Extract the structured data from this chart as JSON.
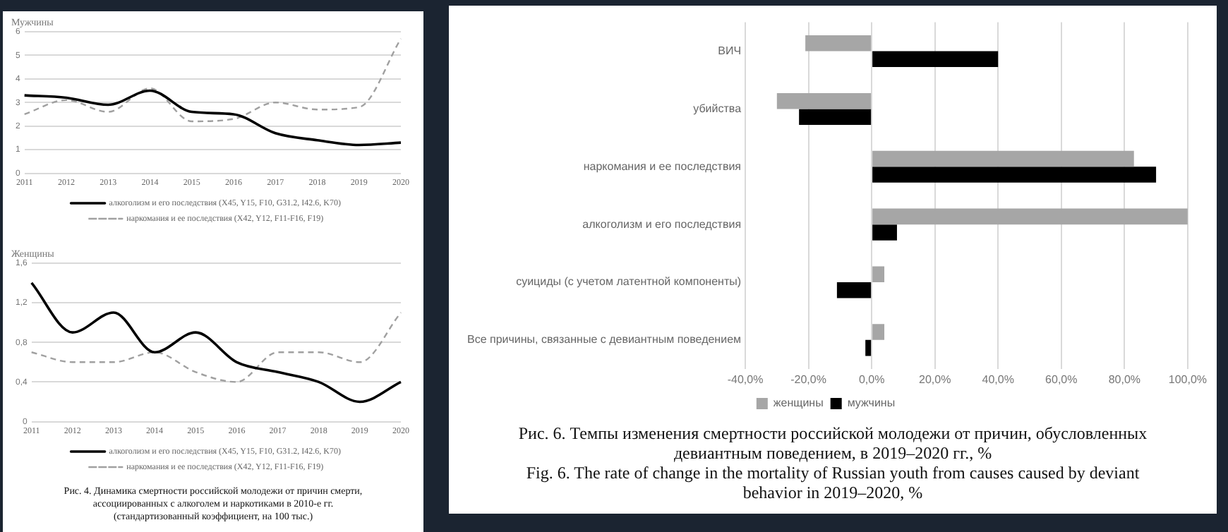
{
  "chart_data": [
    {
      "type": "line",
      "title": "Мужчины",
      "categories": [
        "2011",
        "2012",
        "2013",
        "2014",
        "2015",
        "2016",
        "2017",
        "2018",
        "2019",
        "2020"
      ],
      "series": [
        {
          "name": "алкоголизм и его последствия (X45, Y15, F10, G31.2, I42.6, K70)",
          "color": "#000000",
          "line_style": "solid",
          "values": [
            3.3,
            3.2,
            2.9,
            3.5,
            2.6,
            2.5,
            1.7,
            1.4,
            1.2,
            1.3
          ]
        },
        {
          "name": "наркомания и ее последствия (X42, Y12, F11-F16, F19)",
          "color": "#a0a0a0",
          "line_style": "dashed",
          "values": [
            2.5,
            3.1,
            2.6,
            3.6,
            2.2,
            2.3,
            3.0,
            2.7,
            2.8,
            5.7
          ]
        }
      ],
      "ylim": [
        0,
        6
      ],
      "yticks": [
        0,
        1,
        2,
        3,
        4,
        5,
        6
      ],
      "grid": "y",
      "legend": "bottom",
      "marker": "none"
    },
    {
      "type": "line",
      "title": "Женщины",
      "categories": [
        "2011",
        "2012",
        "2013",
        "2014",
        "2015",
        "2016",
        "2017",
        "2018",
        "2019",
        "2020"
      ],
      "series": [
        {
          "name": "алкоголизм и его последствия (X45, Y15, F10, G31.2, I42.6, K70)",
          "color": "#000000",
          "line_style": "solid",
          "values": [
            1.4,
            0.9,
            1.1,
            0.7,
            0.9,
            0.6,
            0.5,
            0.4,
            0.2,
            0.4
          ]
        },
        {
          "name": "наркомания и ее последствия (X42, Y12, F11-F16, F19)",
          "color": "#a0a0a0",
          "line_style": "dashed",
          "values": [
            0.7,
            0.6,
            0.6,
            0.7,
            0.5,
            0.4,
            0.7,
            0.7,
            0.6,
            1.1
          ]
        }
      ],
      "ylim": [
        0,
        1.6
      ],
      "yticks": [
        0,
        {
          "value": 0.4,
          "label": "0,4"
        },
        {
          "value": 0.8,
          "label": "0,8"
        },
        {
          "value": 1.2,
          "label": "1,2"
        },
        {
          "value": 1.6,
          "label": "1,6"
        }
      ],
      "grid": "y",
      "legend": "bottom",
      "marker": "none",
      "annotations": [
        "Рис. 4. Динамика смертности российской молодежи от причин смерти, ассоциированных с алкоголем и наркотиками в 2010-е гг. (стандартизованный коэффициент, на 100 тыс.)"
      ]
    },
    {
      "type": "bar",
      "orientation": "horizontal",
      "categories": [
        "ВИЧ",
        "убийства",
        "наркомания и ее последствия",
        "алкоголизм и его последствия",
        "суициды (с учетом латентной компоненты)",
        "Все причины, связанные с девиантным поведением"
      ],
      "series": [
        {
          "name": "женщины",
          "color": "#a6a6a6",
          "values": [
            -21,
            -30,
            83,
            100,
            4,
            4
          ]
        },
        {
          "name": "мужчины",
          "color": "#000000",
          "values": [
            40,
            -23,
            90,
            8,
            -11,
            -2
          ]
        }
      ],
      "xlim": [
        -40,
        100
      ],
      "xticks": [
        {
          "value": -40,
          "label": "-40,0%"
        },
        {
          "value": -20,
          "label": "-20,0%"
        },
        {
          "value": 0,
          "label": "0,0%"
        },
        {
          "value": 20,
          "label": "20,0%"
        },
        {
          "value": 40,
          "label": "40,0%"
        },
        {
          "value": 60,
          "label": "60,0%"
        },
        {
          "value": 80,
          "label": "80,0%"
        },
        {
          "value": 100,
          "label": "100,0%"
        }
      ],
      "grid": "x",
      "legend": "bottom",
      "annotations": [
        "Рис. 6. Темпы изменения смертности российской молодежи от причин, обусловленных девиантным поведением, в 2019–2020 гг., %",
        "Fig. 6. The rate of change in the mortality of Russian youth from causes caused by deviant behavior in 2019–2020, %"
      ]
    }
  ]
}
